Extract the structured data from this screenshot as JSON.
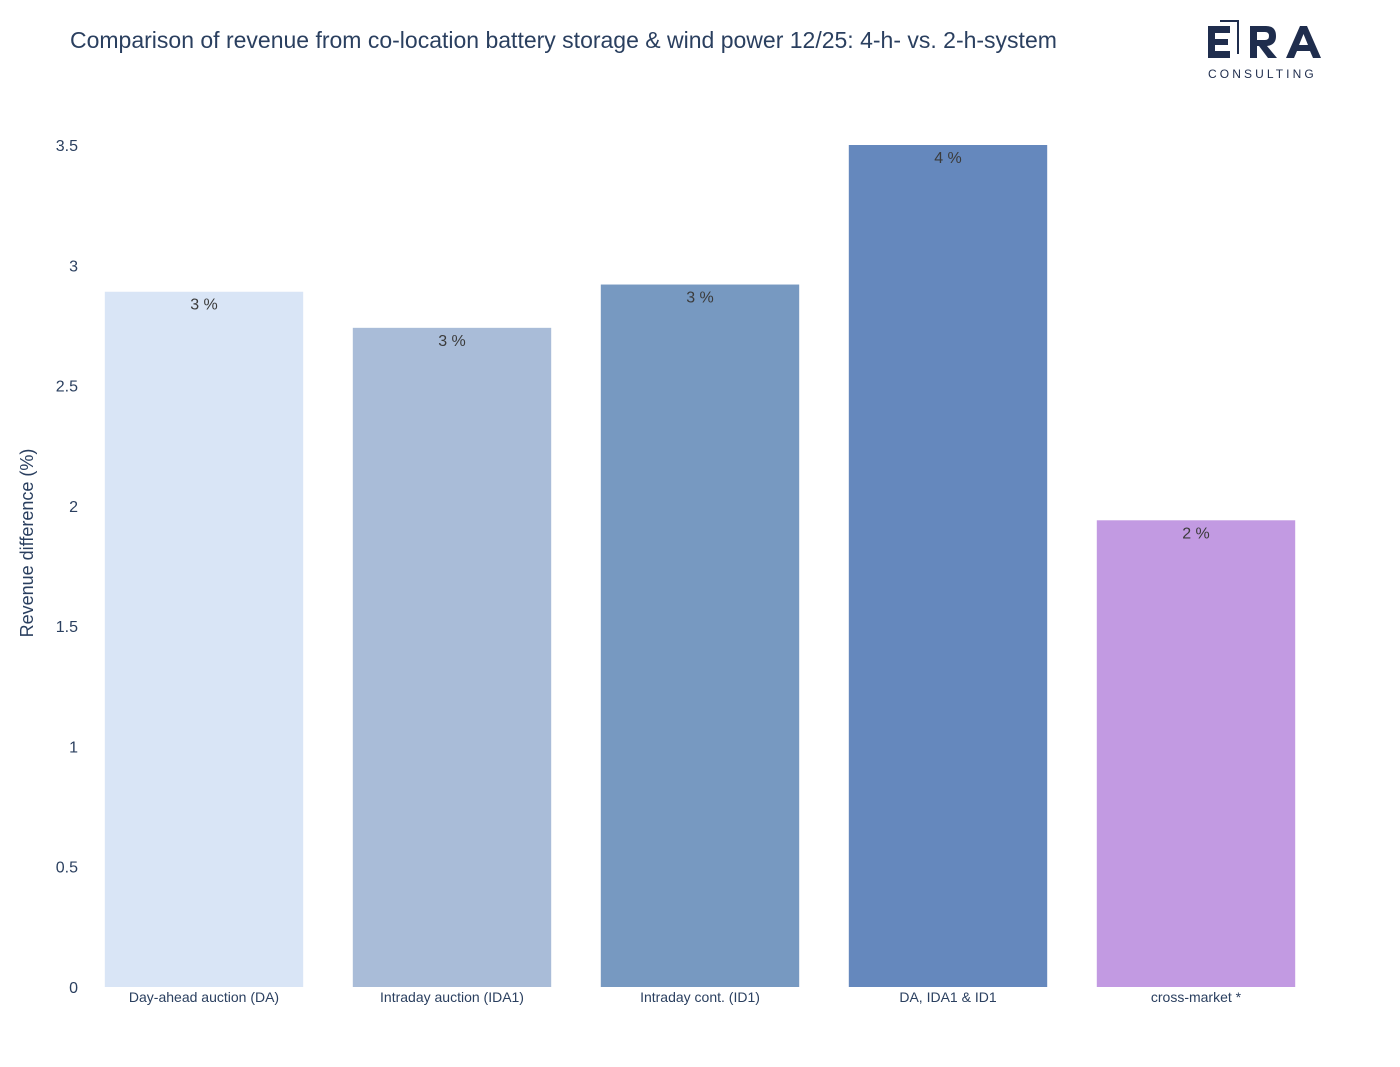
{
  "title": "Comparison of revenue from co-location battery storage & wind power 12/25: 4-h- vs. 2-h-system",
  "logo": {
    "name": "ERA",
    "subtitle": "CONSULTING",
    "color": "#1f2d4d"
  },
  "chart_data": {
    "type": "bar",
    "title": "Comparison of revenue from co-location battery storage & wind power 12/25: 4-h- vs. 2-h-system",
    "xlabel": "",
    "ylabel": "Revenue difference (%)",
    "ylim": [
      0,
      3.5
    ],
    "yticks": [
      0,
      0.5,
      1,
      1.5,
      2,
      2.5,
      3,
      3.5
    ],
    "ytick_labels": [
      "0",
      "0.5",
      "1",
      "1.5",
      "2",
      "2.5",
      "3",
      "3.5"
    ],
    "grid": false,
    "categories": [
      "Day-ahead auction (DA)",
      "Intraday auction (IDA1)",
      "Intraday cont. (ID1)",
      "DA, IDA1 & ID1",
      "cross-market *"
    ],
    "values": [
      2.89,
      2.74,
      2.92,
      3.5,
      1.94
    ],
    "data_labels": [
      "3 %",
      "3 %",
      "3 %",
      "4 %",
      "2 %"
    ],
    "colors": [
      "#d9e5f6",
      "#a9bcd8",
      "#7799c1",
      "#6588bd",
      "#c29ae2"
    ]
  }
}
